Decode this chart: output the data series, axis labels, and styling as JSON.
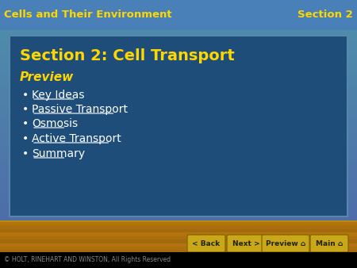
{
  "header_left": "Cells and Their Environment",
  "header_right": "Section 2",
  "header_color": "#FFD700",
  "header_bg": "#4a7fb5",
  "main_title": "Section 2: Cell Transport",
  "main_title_color": "#FFD700",
  "preview_label": "Preview",
  "preview_color": "#FFD700",
  "bullet_items": [
    "Key Ideas",
    "Passive Transport",
    "Osmosis",
    "Active Transport",
    "Summary"
  ],
  "bullet_color": "#FFFFFF",
  "main_panel_color": "#2a5a8c",
  "main_panel_border": "#4a7a9c",
  "background_top": "#6090c0",
  "background_bottom": "#c8a020",
  "footer_bg": "#000000",
  "footer_text": "© HOLT, RINEHART AND WINSTON, All Rights Reserved",
  "footer_color": "#AAAAAA",
  "nav_buttons": [
    "< Back",
    "Next >",
    "Preview ⌂",
    "Main ⌂"
  ],
  "nav_bg": "#c8a020",
  "nav_button_color": "#c8a020",
  "nav_button_border": "#888800"
}
